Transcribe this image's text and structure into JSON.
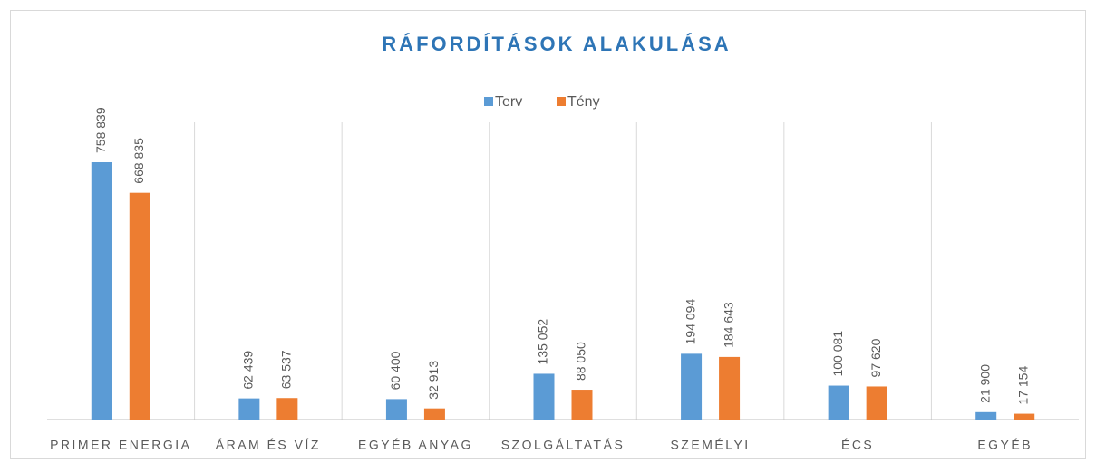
{
  "chart_data": {
    "type": "bar",
    "title": "RÁFORDÍTÁSOK ALAKULÁSA",
    "categories": [
      "PRIMER ENERGIA",
      "ÁRAM ÉS VÍZ",
      "EGYÉB ANYAG",
      "SZOLGÁLTATÁS",
      "SZEMÉLYI",
      "ÉCS",
      "EGYÉB"
    ],
    "series": [
      {
        "name": "Terv",
        "color": "#5b9bd5",
        "values": [
          758839,
          62439,
          60400,
          135052,
          194094,
          100081,
          21900
        ],
        "value_labels": [
          "758 839",
          "62 439",
          "60 400",
          "135 052",
          "194 094",
          "100 081",
          "21 900"
        ]
      },
      {
        "name": "Tény",
        "color": "#ed7d31",
        "values": [
          668835,
          63537,
          32913,
          88050,
          184643,
          97620,
          17154
        ],
        "value_labels": [
          "668 835",
          "63 537",
          "32 913",
          "88 050",
          "184 643",
          "97 620",
          "17 154"
        ]
      }
    ],
    "legend": "top"
  }
}
